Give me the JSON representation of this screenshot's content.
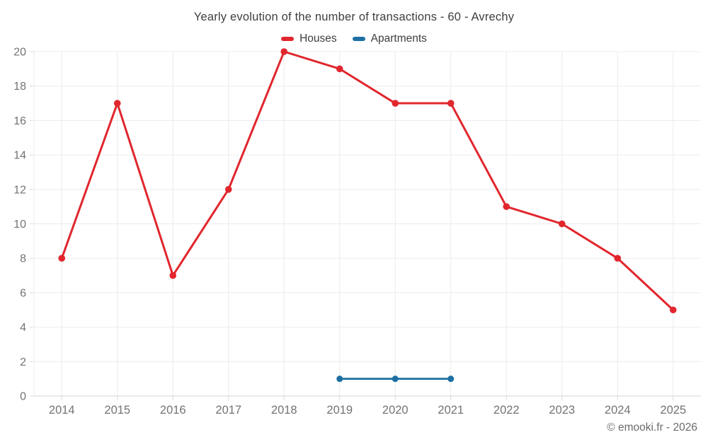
{
  "chart_data": {
    "type": "line",
    "title": "Yearly evolution of the number of transactions - 60 - Avrechy",
    "categories": [
      "2014",
      "2015",
      "2016",
      "2017",
      "2018",
      "2019",
      "2020",
      "2021",
      "2022",
      "2023",
      "2024",
      "2025"
    ],
    "series": [
      {
        "name": "Houses",
        "color": "#e1262d",
        "line_width": 3,
        "marker_radius": 4.8,
        "values": [
          8,
          17,
          7,
          12,
          20,
          19,
          17,
          17,
          11,
          10,
          8,
          5
        ]
      },
      {
        "name": "Apartments",
        "color": "#1d6fa3",
        "line_width": 2.8,
        "marker_radius": 4.5,
        "values": [
          null,
          null,
          null,
          null,
          null,
          1,
          1,
          1,
          null,
          null,
          null,
          null
        ]
      }
    ],
    "ylim": [
      0,
      20
    ],
    "ytick_step": 2,
    "grid": true,
    "legend_position": "top",
    "xlabel": "",
    "ylabel": ""
  },
  "footer": {
    "credit": "© emooki.fr - 2026"
  },
  "colors": {
    "background": "#ffffff",
    "grid": "#ececec",
    "axis_line": "#d4d4d4",
    "tick": "#dcdcdc",
    "tick_label": "#737373",
    "title_text": "#3e3e3e",
    "credit_text": "#6b6b6b"
  }
}
